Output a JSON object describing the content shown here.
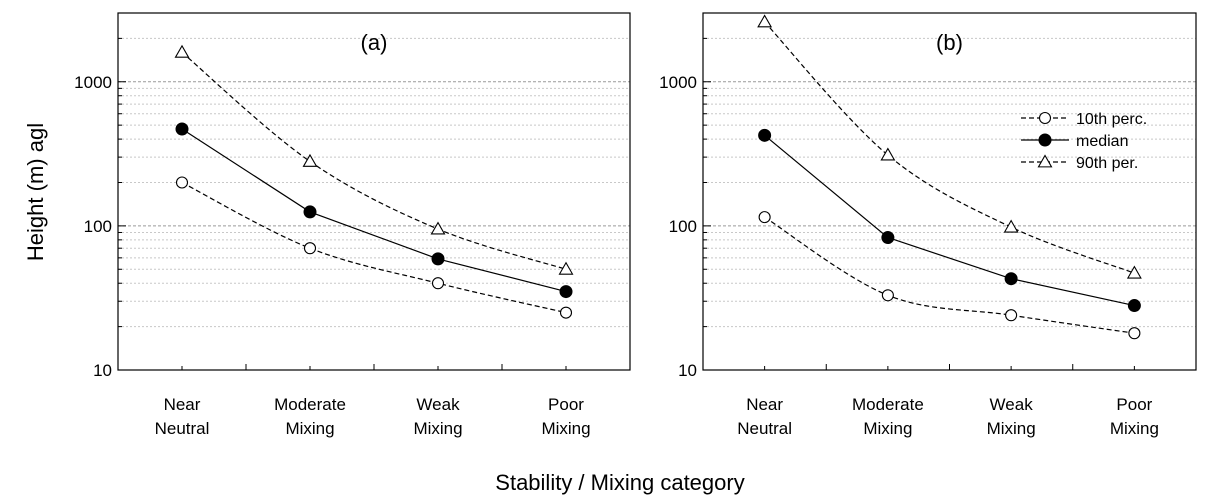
{
  "figure": {
    "ylabel": "Height (m) agl",
    "xlabel": "Stability / Mixing category"
  },
  "chart_data": [
    {
      "type": "line",
      "panel_label": "(a)",
      "categories": [
        [
          "Near",
          "Neutral"
        ],
        [
          "Moderate",
          "Mixing"
        ],
        [
          "Weak",
          "Mixing"
        ],
        [
          "Poor",
          "Mixing"
        ]
      ],
      "y_scale": "log",
      "ylim": [
        10,
        3000
      ],
      "yticks": [
        10,
        100,
        1000
      ],
      "grid": "horizontal minor gridlines",
      "series": [
        {
          "name": "10th perc.",
          "marker": "open-circle",
          "line": "dashed",
          "values": [
            200,
            70,
            40,
            25
          ]
        },
        {
          "name": "median",
          "marker": "filled-circle",
          "line": "solid",
          "values": [
            470,
            125,
            59,
            35
          ]
        },
        {
          "name": "90th per.",
          "marker": "open-triangle",
          "line": "dashed",
          "values": [
            1600,
            280,
            95,
            50
          ]
        }
      ]
    },
    {
      "type": "line",
      "panel_label": "(b)",
      "categories": [
        [
          "Near",
          "Neutral"
        ],
        [
          "Moderate",
          "Mixing"
        ],
        [
          "Weak",
          "Mixing"
        ],
        [
          "Poor",
          "Mixing"
        ]
      ],
      "y_scale": "log",
      "ylim": [
        10,
        3000
      ],
      "yticks": [
        10,
        100,
        1000
      ],
      "grid": "horizontal minor gridlines",
      "legend": {
        "position": "top-right",
        "entries": [
          "10th perc.",
          "median",
          "90th per."
        ]
      },
      "series": [
        {
          "name": "10th perc.",
          "marker": "open-circle",
          "line": "dashed",
          "values": [
            115,
            33,
            24,
            18
          ]
        },
        {
          "name": "median",
          "marker": "filled-circle",
          "line": "solid",
          "values": [
            425,
            83,
            43,
            28
          ]
        },
        {
          "name": "90th per.",
          "marker": "open-triangle",
          "line": "dashed",
          "values": [
            2600,
            310,
            98,
            47
          ]
        }
      ]
    }
  ]
}
